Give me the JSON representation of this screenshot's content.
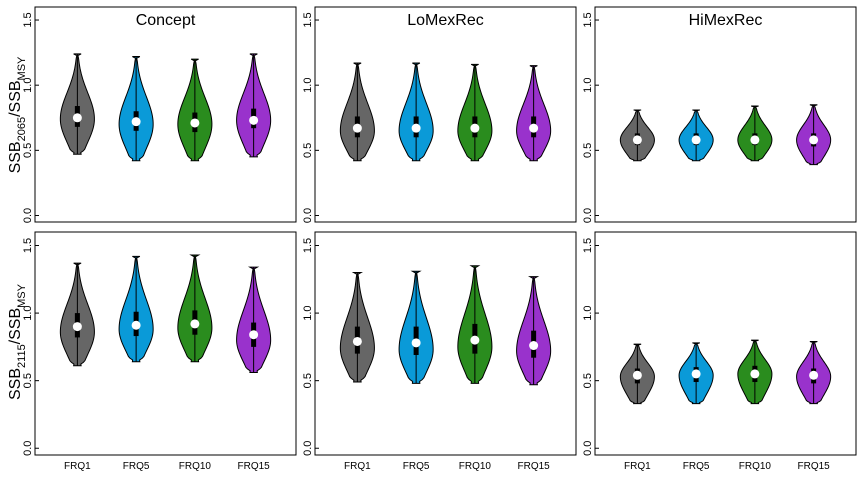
{
  "figure": {
    "row_labels": [
      {
        "main": "SSB",
        "sub1": "2065",
        "mid": "/SSB",
        "sub2": "MSY"
      },
      {
        "main": "SSB",
        "sub1": "2115",
        "mid": "/SSB",
        "sub2": "MSY"
      }
    ],
    "panel_titles": [
      "Concept",
      "LoMexRec",
      "HiMexRec"
    ],
    "colors": {
      "FRQ1": "#666666",
      "FRQ5": "#0a9ad8",
      "FRQ10": "#2a8c1e",
      "FRQ15": "#9932cc"
    }
  },
  "chart_data": [
    {
      "type": "violin",
      "row": 0,
      "col": 0,
      "title": "Concept",
      "categories": [
        "FRQ1",
        "FRQ5",
        "FRQ10",
        "FRQ15"
      ],
      "yticks": [
        "0.0",
        "0.5",
        "1.0",
        "1.5"
      ],
      "ylim": [
        -0.05,
        1.6
      ],
      "series": [
        {
          "category": "FRQ1",
          "min": 0.47,
          "q1": 0.68,
          "median": 0.75,
          "q3": 0.84,
          "max": 1.24,
          "mode": 0.74
        },
        {
          "category": "FRQ5",
          "min": 0.42,
          "q1": 0.65,
          "median": 0.72,
          "q3": 0.8,
          "max": 1.22,
          "mode": 0.7
        },
        {
          "category": "FRQ10",
          "min": 0.42,
          "q1": 0.64,
          "median": 0.71,
          "q3": 0.79,
          "max": 1.2,
          "mode": 0.7
        },
        {
          "category": "FRQ15",
          "min": 0.45,
          "q1": 0.67,
          "median": 0.73,
          "q3": 0.82,
          "max": 1.24,
          "mode": 0.73
        }
      ]
    },
    {
      "type": "violin",
      "row": 0,
      "col": 1,
      "title": "LoMexRec",
      "categories": [
        "FRQ1",
        "FRQ5",
        "FRQ10",
        "FRQ15"
      ],
      "yticks": [
        "0.0",
        "0.5",
        "1.0",
        "1.5"
      ],
      "ylim": [
        -0.05,
        1.6
      ],
      "series": [
        {
          "category": "FRQ1",
          "min": 0.42,
          "q1": 0.6,
          "median": 0.67,
          "q3": 0.76,
          "max": 1.17,
          "mode": 0.65
        },
        {
          "category": "FRQ5",
          "min": 0.42,
          "q1": 0.6,
          "median": 0.67,
          "q3": 0.76,
          "max": 1.17,
          "mode": 0.65
        },
        {
          "category": "FRQ10",
          "min": 0.42,
          "q1": 0.6,
          "median": 0.67,
          "q3": 0.76,
          "max": 1.16,
          "mode": 0.65
        },
        {
          "category": "FRQ15",
          "min": 0.42,
          "q1": 0.6,
          "median": 0.67,
          "q3": 0.76,
          "max": 1.15,
          "mode": 0.65
        }
      ]
    },
    {
      "type": "violin",
      "row": 0,
      "col": 2,
      "title": "HiMexRec",
      "categories": [
        "FRQ1",
        "FRQ5",
        "FRQ10",
        "FRQ15"
      ],
      "yticks": [
        "0.0",
        "0.5",
        "1.0",
        "1.5"
      ],
      "ylim": [
        -0.05,
        1.6
      ],
      "series": [
        {
          "category": "FRQ1",
          "min": 0.42,
          "q1": 0.54,
          "median": 0.58,
          "q3": 0.63,
          "max": 0.81,
          "mode": 0.58
        },
        {
          "category": "FRQ5",
          "min": 0.42,
          "q1": 0.54,
          "median": 0.58,
          "q3": 0.63,
          "max": 0.81,
          "mode": 0.58
        },
        {
          "category": "FRQ10",
          "min": 0.42,
          "q1": 0.54,
          "median": 0.58,
          "q3": 0.63,
          "max": 0.84,
          "mode": 0.58
        },
        {
          "category": "FRQ15",
          "min": 0.39,
          "q1": 0.53,
          "median": 0.58,
          "q3": 0.63,
          "max": 0.85,
          "mode": 0.58
        }
      ]
    },
    {
      "type": "violin",
      "row": 1,
      "col": 0,
      "title": "",
      "categories": [
        "FRQ1",
        "FRQ5",
        "FRQ10",
        "FRQ15"
      ],
      "yticks": [
        "0.0",
        "0.5",
        "1.0",
        "1.5"
      ],
      "ylim": [
        -0.05,
        1.6
      ],
      "series": [
        {
          "category": "FRQ1",
          "min": 0.61,
          "q1": 0.82,
          "median": 0.9,
          "q3": 1.0,
          "max": 1.37,
          "mode": 0.86
        },
        {
          "category": "FRQ5",
          "min": 0.64,
          "q1": 0.83,
          "median": 0.91,
          "q3": 1.01,
          "max": 1.42,
          "mode": 0.88
        },
        {
          "category": "FRQ10",
          "min": 0.64,
          "q1": 0.84,
          "median": 0.92,
          "q3": 1.02,
          "max": 1.43,
          "mode": 0.89
        },
        {
          "category": "FRQ15",
          "min": 0.56,
          "q1": 0.75,
          "median": 0.84,
          "q3": 0.93,
          "max": 1.34,
          "mode": 0.8
        }
      ]
    },
    {
      "type": "violin",
      "row": 1,
      "col": 1,
      "title": "",
      "categories": [
        "FRQ1",
        "FRQ5",
        "FRQ10",
        "FRQ15"
      ],
      "yticks": [
        "0.0",
        "0.5",
        "1.0",
        "1.5"
      ],
      "ylim": [
        -0.05,
        1.6
      ],
      "series": [
        {
          "category": "FRQ1",
          "min": 0.49,
          "q1": 0.7,
          "median": 0.79,
          "q3": 0.9,
          "max": 1.3,
          "mode": 0.74
        },
        {
          "category": "FRQ5",
          "min": 0.48,
          "q1": 0.69,
          "median": 0.78,
          "q3": 0.9,
          "max": 1.31,
          "mode": 0.73
        },
        {
          "category": "FRQ10",
          "min": 0.48,
          "q1": 0.7,
          "median": 0.8,
          "q3": 0.92,
          "max": 1.35,
          "mode": 0.75
        },
        {
          "category": "FRQ15",
          "min": 0.47,
          "q1": 0.67,
          "median": 0.76,
          "q3": 0.87,
          "max": 1.27,
          "mode": 0.72
        }
      ]
    },
    {
      "type": "violin",
      "row": 1,
      "col": 2,
      "title": "",
      "categories": [
        "FRQ1",
        "FRQ5",
        "FRQ10",
        "FRQ15"
      ],
      "yticks": [
        "0.0",
        "0.5",
        "1.0",
        "1.5"
      ],
      "ylim": [
        -0.05,
        1.6
      ],
      "series": [
        {
          "category": "FRQ1",
          "min": 0.33,
          "q1": 0.48,
          "median": 0.54,
          "q3": 0.59,
          "max": 0.77,
          "mode": 0.53
        },
        {
          "category": "FRQ5",
          "min": 0.33,
          "q1": 0.49,
          "median": 0.55,
          "q3": 0.6,
          "max": 0.78,
          "mode": 0.54
        },
        {
          "category": "FRQ10",
          "min": 0.33,
          "q1": 0.49,
          "median": 0.55,
          "q3": 0.61,
          "max": 0.8,
          "mode": 0.55
        },
        {
          "category": "FRQ15",
          "min": 0.33,
          "q1": 0.48,
          "median": 0.54,
          "q3": 0.59,
          "max": 0.79,
          "mode": 0.53
        }
      ]
    }
  ]
}
